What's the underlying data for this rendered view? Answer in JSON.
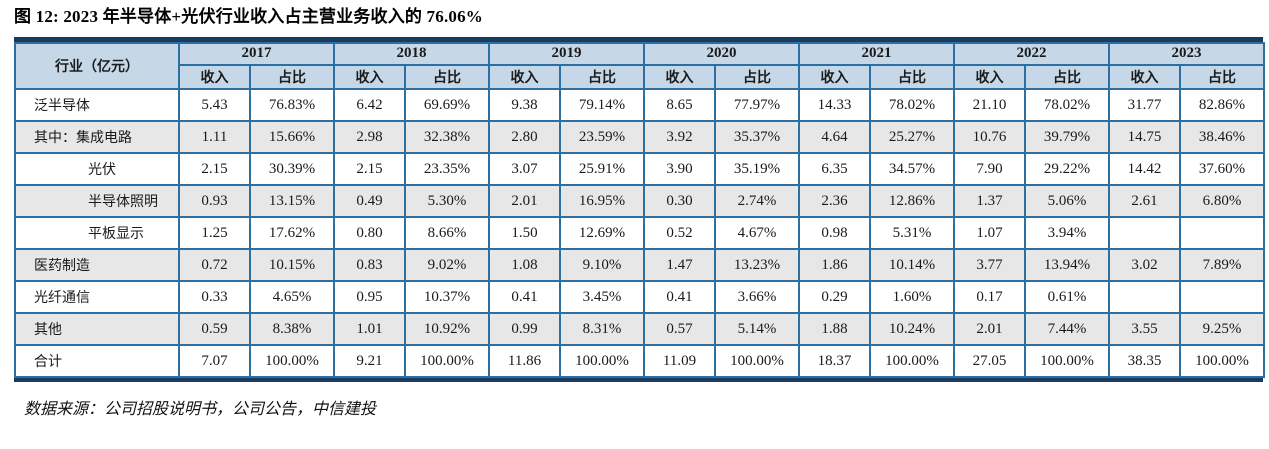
{
  "figure": {
    "title": "图 12: 2023 年半导体+光伏行业收入占主营业务收入的 76.06%",
    "source_note": "数据来源：公司招股说明书，公司公告，中信建投"
  },
  "chart_data": {
    "type": "table",
    "title": "2023 年半导体+光伏行业收入占主营业务收入的 76.06%",
    "corner_label": "行业（亿元）",
    "years": [
      "2017",
      "2018",
      "2019",
      "2020",
      "2021",
      "2022",
      "2023"
    ],
    "sub_headers": [
      "收入",
      "占比"
    ],
    "rows": [
      {
        "label": "泛半导体",
        "indent": false,
        "values": [
          "5.43",
          "76.83%",
          "6.42",
          "69.69%",
          "9.38",
          "79.14%",
          "8.65",
          "77.97%",
          "14.33",
          "78.02%",
          "21.10",
          "78.02%",
          "31.77",
          "82.86%"
        ]
      },
      {
        "label": "其中：集成电路",
        "indent": false,
        "values": [
          "1.11",
          "15.66%",
          "2.98",
          "32.38%",
          "2.80",
          "23.59%",
          "3.92",
          "35.37%",
          "4.64",
          "25.27%",
          "10.76",
          "39.79%",
          "14.75",
          "38.46%"
        ]
      },
      {
        "label": "光伏",
        "indent": true,
        "values": [
          "2.15",
          "30.39%",
          "2.15",
          "23.35%",
          "3.07",
          "25.91%",
          "3.90",
          "35.19%",
          "6.35",
          "34.57%",
          "7.90",
          "29.22%",
          "14.42",
          "37.60%"
        ]
      },
      {
        "label": "半导体照明",
        "indent": true,
        "values": [
          "0.93",
          "13.15%",
          "0.49",
          "5.30%",
          "2.01",
          "16.95%",
          "0.30",
          "2.74%",
          "2.36",
          "12.86%",
          "1.37",
          "5.06%",
          "2.61",
          "6.80%"
        ]
      },
      {
        "label": "平板显示",
        "indent": true,
        "values": [
          "1.25",
          "17.62%",
          "0.80",
          "8.66%",
          "1.50",
          "12.69%",
          "0.52",
          "4.67%",
          "0.98",
          "5.31%",
          "1.07",
          "3.94%",
          "",
          ""
        ]
      },
      {
        "label": "医药制造",
        "indent": false,
        "values": [
          "0.72",
          "10.15%",
          "0.83",
          "9.02%",
          "1.08",
          "9.10%",
          "1.47",
          "13.23%",
          "1.86",
          "10.14%",
          "3.77",
          "13.94%",
          "3.02",
          "7.89%"
        ]
      },
      {
        "label": "光纤通信",
        "indent": false,
        "values": [
          "0.33",
          "4.65%",
          "0.95",
          "10.37%",
          "0.41",
          "3.45%",
          "0.41",
          "3.66%",
          "0.29",
          "1.60%",
          "0.17",
          "0.61%",
          "",
          ""
        ]
      },
      {
        "label": "其他",
        "indent": false,
        "values": [
          "0.59",
          "8.38%",
          "1.01",
          "10.92%",
          "0.99",
          "8.31%",
          "0.57",
          "5.14%",
          "1.88",
          "10.24%",
          "2.01",
          "7.44%",
          "3.55",
          "9.25%"
        ]
      },
      {
        "label": "合计",
        "indent": false,
        "values": [
          "7.07",
          "100.00%",
          "9.21",
          "100.00%",
          "11.86",
          "100.00%",
          "11.09",
          "100.00%",
          "18.37",
          "100.00%",
          "27.05",
          "100.00%",
          "38.35",
          "100.00%"
        ]
      }
    ],
    "source": "数据来源：公司招股说明书，公司公告，中信建投",
    "layout": {
      "label_col_width": 164,
      "revenue_col_width": 71,
      "ratio_col_width": 84
    }
  },
  "colors": {
    "border": "#2B6FA3",
    "header_bg": "#C6D8E7",
    "stripe_bg": "#E7E7E7",
    "frame_bar": "#1A3A5F",
    "text": "#1A1A1A"
  }
}
